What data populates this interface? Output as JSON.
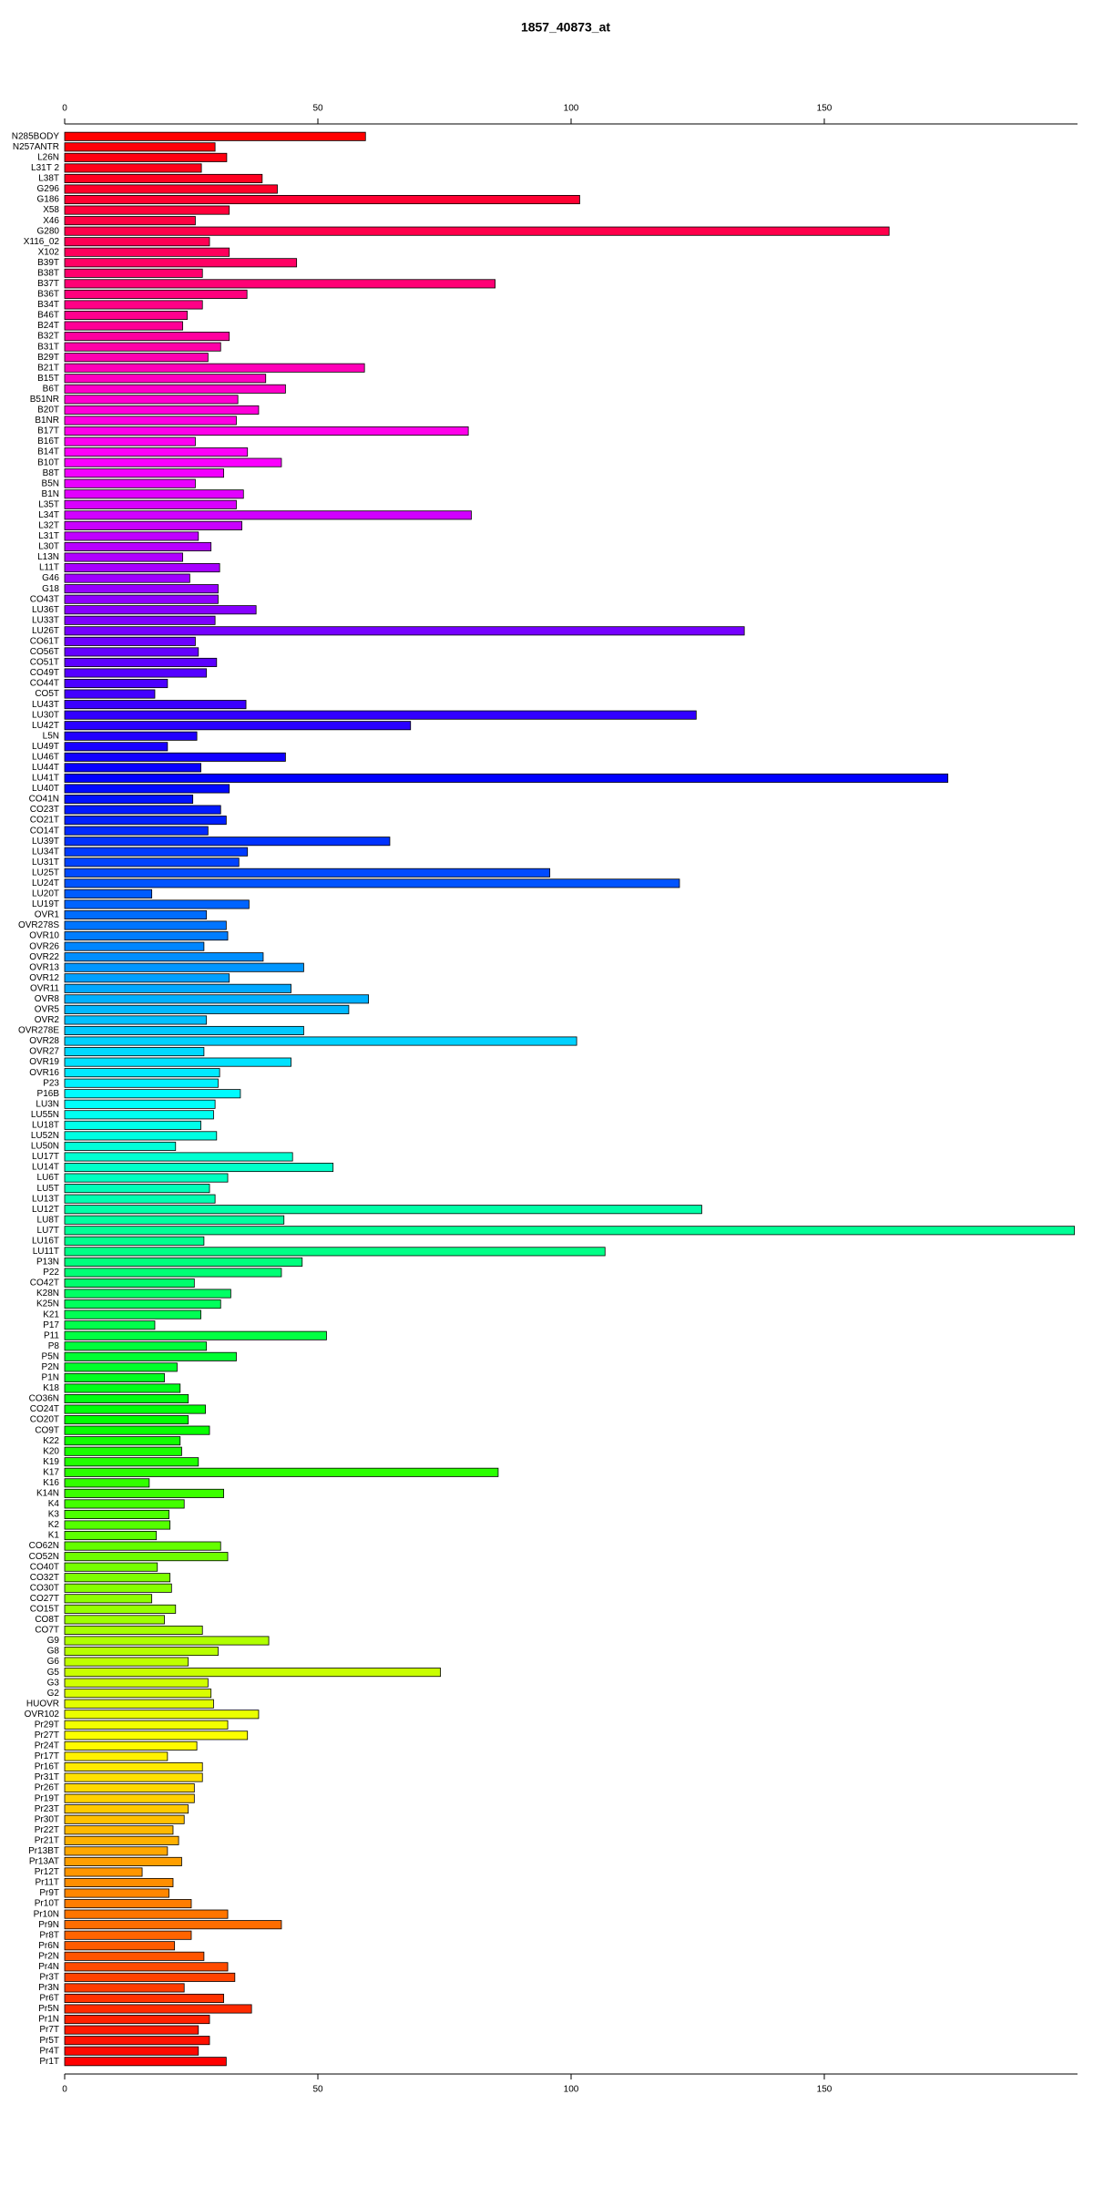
{
  "chart_data": {
    "type": "bar",
    "orientation": "horizontal",
    "title": "1857_40873_at",
    "categories": [
      "N285BODY",
      "N257ANTR",
      "L26N",
      "L31T 2",
      "L38T",
      "G296",
      "G186",
      "X58",
      "X46",
      "G280",
      "X116_02",
      "X102",
      "B39T",
      "B38T",
      "B37T",
      "B36T",
      "B34T",
      "B46T",
      "B24T",
      "B32T",
      "B31T",
      "B29T",
      "B21T",
      "B15T",
      "B6T",
      "B51NR",
      "B20T",
      "B1NR",
      "B17T",
      "B16T",
      "B14T",
      "B10T",
      "B8T",
      "B5N",
      "B1N",
      "L35T",
      "L34T",
      "L32T",
      "L31T",
      "L30T",
      "L13N",
      "L11T",
      "G46",
      "G18",
      "CO43T",
      "LU36T",
      "LU33T",
      "LU26T",
      "CO61T",
      "CO56T",
      "CO51T",
      "CO49T",
      "CO44T",
      "CO5T",
      "LU43T",
      "LU30T",
      "LU42T",
      "L5N",
      "LU49T",
      "LU46T",
      "LU44T",
      "LU41T",
      "LU40T",
      "CO41N",
      "CO23T",
      "CO21T",
      "CO14T",
      "LU39T",
      "LU34T",
      "LU31T",
      "LU25T",
      "LU24T",
      "LU20T",
      "LU19T",
      "OVR1",
      "OVR278S",
      "OVR10",
      "OVR26",
      "OVR22",
      "OVR13",
      "OVR12",
      "OVR11",
      "OVR8",
      "OVR5",
      "OVR2",
      "OVR278E",
      "OVR28",
      "OVR27",
      "OVR19",
      "OVR16",
      "P23",
      "P16B",
      "LU3N",
      "LU55N",
      "LU18T",
      "LU52N",
      "LU50N",
      "LU17T",
      "LU14T",
      "LU6T",
      "LU5T",
      "LU13T",
      "LU12T",
      "LU8T",
      "LU7T",
      "LU16T",
      "LU11T",
      "P13N",
      "P22",
      "CO42T",
      "K28N",
      "K25N",
      "K21",
      "P17",
      "P11",
      "P8",
      "P5N",
      "P2N",
      "P1N",
      "K18",
      "CO36N",
      "CO24T",
      "CO20T",
      "CO9T",
      "K22",
      "K20",
      "K19",
      "K17",
      "K16",
      "K14N",
      "K4",
      "K3",
      "K2",
      "K1",
      "CO62N",
      "CO52N",
      "CO40T",
      "CO32T",
      "CO30T",
      "CO27T",
      "CO15T",
      "CO8T",
      "CO7T",
      "G9",
      "G8",
      "G6",
      "G5",
      "G3",
      "G2",
      "HUOVR",
      "OVR102",
      "Pr29T",
      "Pr27T",
      "Pr24T",
      "Pr17T",
      "Pr16T",
      "Pr31T",
      "Pr26T",
      "Pr19T",
      "Pr23T",
      "Pr30T",
      "Pr22T",
      "Pr21T",
      "Pr13BT",
      "Pr13AT",
      "Pr12T",
      "Pr11T",
      "Pr9T",
      "Pr10T",
      "Pr10N",
      "Pr9N",
      "Pr8T",
      "Pr6N",
      "Pr2N",
      "Pr4N",
      "Pr3T",
      "Pr3N",
      "Pr6T",
      "Pr5N",
      "Pr1N",
      "Pr7T",
      "Pr5T",
      "Pr4T",
      "Pr1T"
    ],
    "values": [
      59.4,
      29.7,
      32,
      27,
      39,
      42,
      101.7,
      32.5,
      25.8,
      162.8,
      28.6,
      32.5,
      45.8,
      27.2,
      85,
      36,
      27.2,
      24.2,
      23.3,
      32.5,
      30.8,
      28.3,
      59.2,
      39.7,
      43.6,
      34.2,
      38.3,
      33.9,
      79.7,
      25.8,
      36.1,
      42.8,
      31.4,
      25.8,
      35.3,
      33.9,
      80.3,
      35,
      26.4,
      28.9,
      23.3,
      30.6,
      24.7,
      30.3,
      30.3,
      37.8,
      29.7,
      134.2,
      25.8,
      26.4,
      30,
      28,
      20.3,
      17.8,
      35.8,
      124.7,
      68.3,
      26.1,
      20.3,
      43.6,
      26.9,
      174.4,
      32.5,
      25.3,
      30.8,
      31.9,
      28.3,
      64.2,
      36.1,
      34.4,
      95.8,
      121.4,
      17.2,
      36.4,
      28,
      31.9,
      32.2,
      27.5,
      39.2,
      47.2,
      32.5,
      44.7,
      60,
      56.1,
      28,
      47.2,
      101.1,
      27.5,
      44.7,
      30.6,
      30.3,
      34.7,
      29.7,
      29.4,
      26.9,
      30,
      21.9,
      45,
      53,
      32.2,
      28.6,
      29.7,
      125.8,
      43.3,
      199.4,
      27.5,
      106.7,
      46.9,
      42.8,
      25.6,
      32.8,
      30.8,
      26.9,
      17.8,
      51.7,
      28,
      33.9,
      22.2,
      19.7,
      22.8,
      24.4,
      27.8,
      24.4,
      28.6,
      22.8,
      23.1,
      26.4,
      85.6,
      16.7,
      31.4,
      23.6,
      20.6,
      20.8,
      18.1,
      30.8,
      32.2,
      18.3,
      20.8,
      21.1,
      17.2,
      21.9,
      19.7,
      27.2,
      40.3,
      30.3,
      24.4,
      74.2,
      28.3,
      28.9,
      29.4,
      38.3,
      32.2,
      36.1,
      26.1,
      20.3,
      27.2,
      27.2,
      25.6,
      25.6,
      24.4,
      23.6,
      21.4,
      22.5,
      20.3,
      23.1,
      15.3,
      21.4,
      20.6,
      25,
      32.2,
      42.8,
      25,
      21.7,
      27.5,
      32.2,
      33.6,
      23.6,
      31.4,
      36.9,
      28.6,
      26.4,
      28.6,
      26.4,
      31.9
    ],
    "color_stops": [
      "#ff0000",
      "#ff00ff",
      "#0000ff",
      "#00ffff",
      "#00ff00",
      "#ffff00",
      "#ff0000"
    ],
    "xlim": [
      0,
      200
    ],
    "xticks": [
      0,
      50,
      100,
      150
    ]
  }
}
